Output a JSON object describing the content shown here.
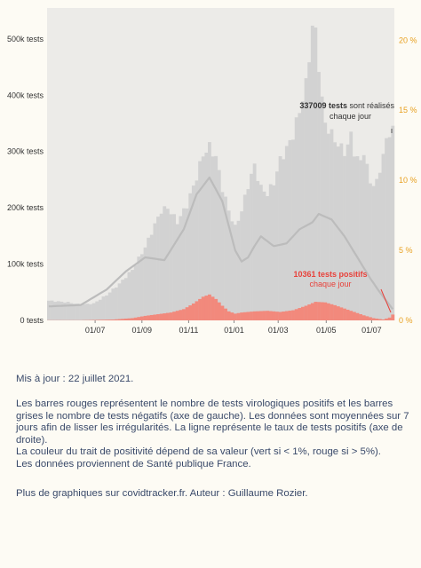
{
  "chart_data": {
    "type": "bar",
    "x_ticks": [
      "01/07",
      "01/09",
      "01/11",
      "01/01",
      "01/03",
      "01/05",
      "01/07"
    ],
    "y_left": {
      "ticks": [
        "0 tests",
        "100k tests",
        "200k tests",
        "300k tests",
        "400k tests",
        "500k tests"
      ],
      "tick_values": [
        0,
        100000,
        200000,
        300000,
        400000,
        500000
      ],
      "range": [
        0,
        555000
      ]
    },
    "y_right": {
      "ticks": [
        "0 %",
        "5 %",
        "10 %",
        "15 %",
        "20 %"
      ],
      "tick_values": [
        0,
        5,
        10,
        15,
        20
      ],
      "range": [
        0,
        22.3
      ]
    },
    "series": [
      {
        "name": "tests négatifs",
        "color": "#d2d2d2",
        "anchors": [
          [
            0,
            35000
          ],
          [
            6,
            32000
          ],
          [
            10,
            28000
          ],
          [
            14,
            30000
          ],
          [
            18,
            45000
          ],
          [
            22,
            65000
          ],
          [
            26,
            90000
          ],
          [
            30,
            130000
          ],
          [
            33,
            170000
          ],
          [
            35,
            195000
          ],
          [
            37,
            200000
          ],
          [
            40,
            175000
          ],
          [
            43,
            205000
          ],
          [
            46,
            255000
          ],
          [
            48,
            295000
          ],
          [
            50,
            308000
          ],
          [
            52,
            290000
          ],
          [
            54,
            235000
          ],
          [
            56,
            195000
          ],
          [
            58,
            165000
          ],
          [
            60,
            195000
          ],
          [
            62,
            240000
          ],
          [
            64,
            275000
          ],
          [
            66,
            235000
          ],
          [
            68,
            225000
          ],
          [
            70,
            245000
          ],
          [
            72,
            285000
          ],
          [
            74,
            305000
          ],
          [
            76,
            330000
          ],
          [
            78,
            372000
          ],
          [
            80,
            418000
          ],
          [
            81,
            470000
          ],
          [
            82,
            522000
          ],
          [
            83,
            510000
          ],
          [
            84,
            455000
          ],
          [
            85,
            390000
          ],
          [
            86,
            350000
          ],
          [
            88,
            330000
          ],
          [
            90,
            312000
          ],
          [
            92,
            300000
          ],
          [
            93,
            310000
          ],
          [
            94,
            330000
          ],
          [
            95,
            300000
          ],
          [
            96,
            285000
          ],
          [
            97,
            285000
          ],
          [
            98,
            300000
          ],
          [
            99,
            270000
          ],
          [
            100,
            248000
          ],
          [
            101,
            240000
          ],
          [
            102,
            245000
          ],
          [
            103,
            270000
          ],
          [
            104,
            292000
          ],
          [
            105,
            320000
          ],
          [
            106,
            335000
          ],
          [
            107,
            337009
          ]
        ]
      },
      {
        "name": "tests positifs",
        "color": "#f2897c",
        "anchors": [
          [
            0,
            300
          ],
          [
            10,
            300
          ],
          [
            20,
            1500
          ],
          [
            26,
            4000
          ],
          [
            30,
            8000
          ],
          [
            34,
            11000
          ],
          [
            38,
            14000
          ],
          [
            42,
            20000
          ],
          [
            45,
            30000
          ],
          [
            48,
            42000
          ],
          [
            50,
            46000
          ],
          [
            52,
            38000
          ],
          [
            54,
            26000
          ],
          [
            56,
            16000
          ],
          [
            58,
            12000
          ],
          [
            60,
            14000
          ],
          [
            64,
            16000
          ],
          [
            68,
            17000
          ],
          [
            72,
            15000
          ],
          [
            76,
            18000
          ],
          [
            80,
            26000
          ],
          [
            83,
            33000
          ],
          [
            86,
            32000
          ],
          [
            89,
            27000
          ],
          [
            92,
            21000
          ],
          [
            95,
            15000
          ],
          [
            98,
            9000
          ],
          [
            101,
            4000
          ],
          [
            104,
            1600
          ],
          [
            106,
            5000
          ],
          [
            107,
            10361
          ]
        ]
      },
      {
        "name": "taux de positivité",
        "color": "#bcbcbc",
        "anchors": [
          [
            0,
            1.0
          ],
          [
            10,
            1.1
          ],
          [
            18,
            2.2
          ],
          [
            24,
            3.5
          ],
          [
            30,
            4.5
          ],
          [
            36,
            4.3
          ],
          [
            42,
            6.5
          ],
          [
            46,
            9.0
          ],
          [
            50,
            10.2
          ],
          [
            54,
            8.5
          ],
          [
            58,
            5.0
          ],
          [
            60,
            4.2
          ],
          [
            62,
            4.5
          ],
          [
            64,
            5.3
          ],
          [
            66,
            6.0
          ],
          [
            70,
            5.3
          ],
          [
            74,
            5.5
          ],
          [
            78,
            6.5
          ],
          [
            82,
            7.0
          ],
          [
            84,
            7.6
          ],
          [
            88,
            7.2
          ],
          [
            92,
            6.0
          ],
          [
            96,
            4.5
          ],
          [
            100,
            3.0
          ],
          [
            103,
            2.0
          ],
          [
            106,
            1.1
          ],
          [
            107,
            0.8
          ]
        ]
      }
    ],
    "annotations": {
      "tests": {
        "value": "337009 tests",
        "rest": " sont réalisés",
        "line2": "chaque jour"
      },
      "positifs": {
        "line1": "10361 tests positifs",
        "line2": "chaque jour"
      }
    }
  },
  "notes": {
    "update": "Mis à jour : 22 juillet 2021.",
    "p1": "Les barres rouges représentent le nombre de tests virologiques positifs et les barres grises le nombre de tests négatifs (axe de gauche). Les données sont moyennées sur 7 jours afin de lisser les irrégularités. La ligne représente le taux de tests positifs (axe de droite).",
    "p2": "La couleur du trait de positivité dépend de sa valeur (vert si < 1%, rouge si > 5%).",
    "p3": "Les données proviennent de Santé publique France.",
    "p4": "Plus de graphiques sur covidtracker.fr. Auteur : Guillaume Rozier."
  }
}
